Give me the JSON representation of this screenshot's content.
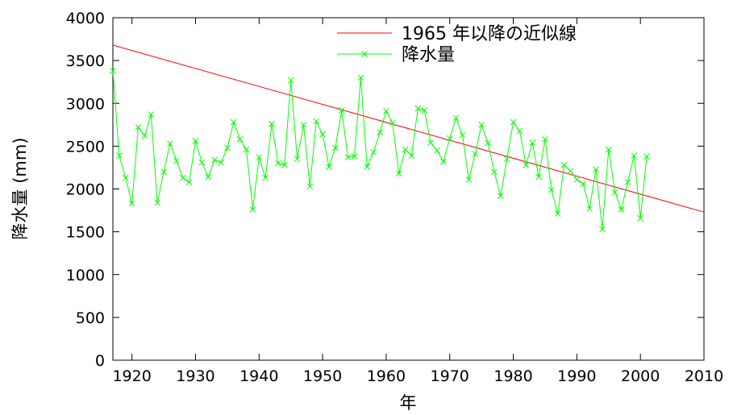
{
  "chart_data": {
    "type": "line",
    "title": "",
    "xlabel": "年",
    "ylabel": "降水量 (mm)",
    "xlim": [
      1917,
      2010
    ],
    "ylim": [
      0,
      4000
    ],
    "xticks": [
      1920,
      1930,
      1940,
      1950,
      1960,
      1970,
      1980,
      1990,
      2000,
      2010
    ],
    "yticks": [
      0,
      500,
      1000,
      1500,
      2000,
      2500,
      3000,
      3500,
      4000
    ],
    "grid": false,
    "legend_position": "top-right",
    "series": [
      {
        "name": "1965 年以降の近似線",
        "color": "#ff0000",
        "marker": "none",
        "x": [
          1917,
          2010
        ],
        "y": [
          3680,
          1730
        ]
      },
      {
        "name": "降水量",
        "color": "#00ff00",
        "marker": "x",
        "x": [
          1917,
          1918,
          1919,
          1920,
          1921,
          1922,
          1923,
          1924,
          1925,
          1926,
          1927,
          1928,
          1929,
          1930,
          1931,
          1932,
          1933,
          1934,
          1935,
          1936,
          1937,
          1938,
          1939,
          1940,
          1941,
          1942,
          1943,
          1944,
          1945,
          1946,
          1947,
          1948,
          1949,
          1950,
          1951,
          1952,
          1953,
          1954,
          1955,
          1956,
          1957,
          1958,
          1959,
          1960,
          1961,
          1962,
          1963,
          1964,
          1965,
          1966,
          1967,
          1968,
          1969,
          1970,
          1971,
          1972,
          1973,
          1974,
          1975,
          1976,
          1977,
          1978,
          1979,
          1980,
          1981,
          1982,
          1983,
          1984,
          1985,
          1986,
          1987,
          1988,
          1989,
          1990,
          1991,
          1992,
          1993,
          1994,
          1995,
          1996,
          1997,
          1998,
          1999,
          2000,
          2001
        ],
        "y": [
          3380,
          2390,
          2130,
          1830,
          2720,
          2620,
          2870,
          1840,
          2200,
          2530,
          2330,
          2130,
          2080,
          2560,
          2310,
          2140,
          2340,
          2310,
          2480,
          2780,
          2580,
          2460,
          1760,
          2370,
          2130,
          2760,
          2300,
          2280,
          3270,
          2350,
          2750,
          2030,
          2790,
          2640,
          2260,
          2480,
          2920,
          2370,
          2380,
          3300,
          2260,
          2430,
          2660,
          2910,
          2770,
          2180,
          2460,
          2390,
          2940,
          2920,
          2540,
          2450,
          2320,
          2590,
          2830,
          2630,
          2110,
          2410,
          2750,
          2540,
          2200,
          1920,
          2350,
          2780,
          2680,
          2280,
          2540,
          2140,
          2580,
          1990,
          1710,
          2280,
          2210,
          2110,
          2060,
          1770,
          2230,
          1530,
          2460,
          1960,
          1760,
          2080,
          2390,
          1660,
          2380
        ]
      }
    ]
  }
}
